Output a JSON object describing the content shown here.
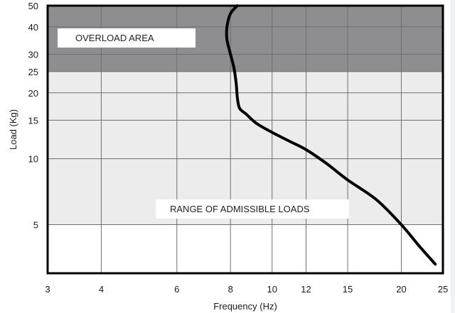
{
  "chart_data": {
    "type": "line",
    "title": "",
    "xlabel": "Frequency  (Hz)",
    "ylabel": "Load (Kg)",
    "x_scale": "log",
    "y_scale": "log",
    "xlim": [
      3,
      25
    ],
    "ylim": [
      3,
      50
    ],
    "x_ticks": [
      3,
      4,
      6,
      8,
      10,
      12,
      15,
      20,
      25
    ],
    "y_ticks": [
      5,
      10,
      15,
      20,
      25,
      30,
      40,
      50
    ],
    "grid": true,
    "zones": [
      {
        "label": "OVERLOAD AREA",
        "y_range": [
          25,
          50
        ],
        "color": "#8e8d90"
      },
      {
        "label": "RANGE OF ADMISSIBLE LOADS",
        "y_range": [
          5,
          25
        ],
        "color": "#ececed"
      }
    ],
    "series": [
      {
        "x": [
          8.3,
          8.0,
          7.85,
          7.85,
          8.0,
          8.15,
          8.25,
          8.3,
          8.4,
          8.7,
          9.2,
          10.0,
          11.0,
          12.0,
          13.4,
          15.0,
          17.5,
          20.0,
          22.0,
          24.0
        ],
        "y": [
          50,
          46,
          40,
          35,
          30,
          26,
          22,
          19,
          17,
          16,
          14.5,
          13.2,
          12,
          11,
          9.5,
          8,
          6.5,
          5,
          4,
          3.3
        ],
        "color": "#000000"
      }
    ]
  }
}
